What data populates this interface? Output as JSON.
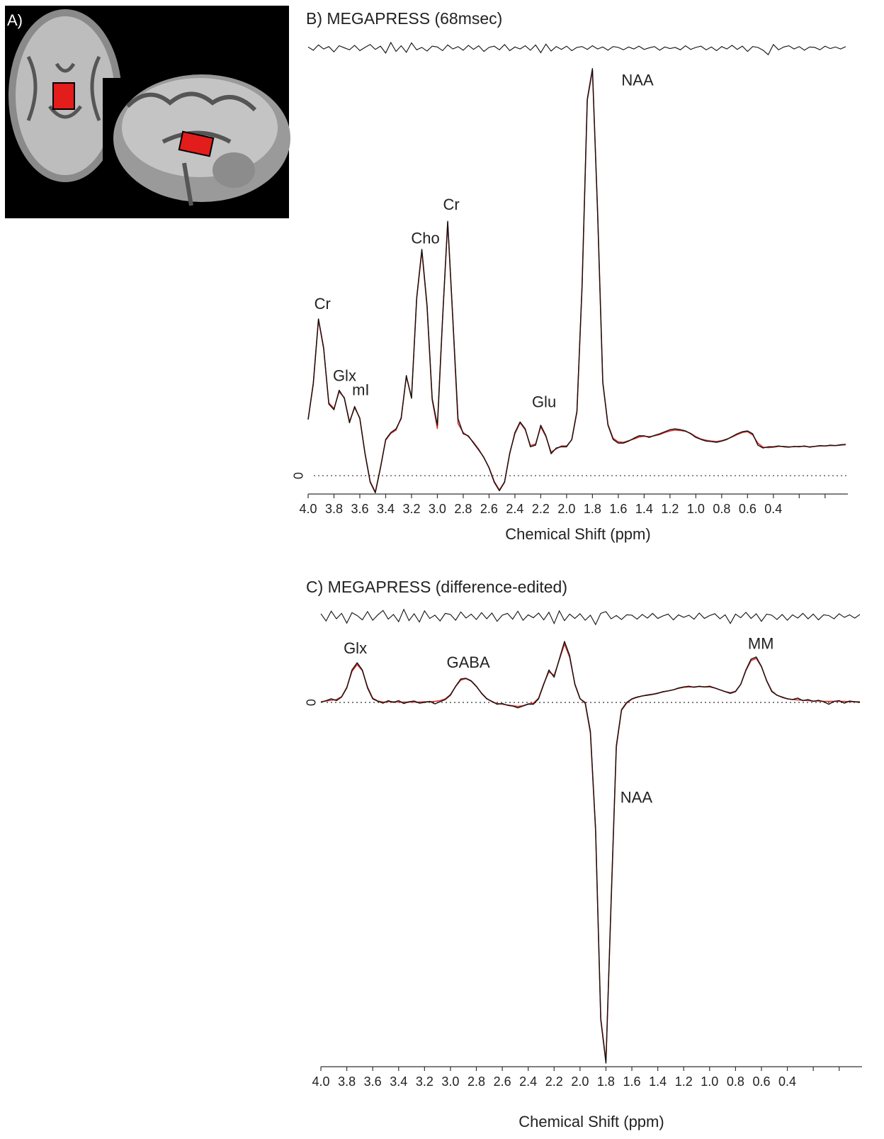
{
  "panel_a": {
    "label": "A)"
  },
  "chart_data": [
    {
      "type": "line",
      "title": "B) MEGAPRESS (68msec)",
      "xlabel": "Chemical Shift (ppm)",
      "x": [
        4.0,
        3.96,
        3.92,
        3.88,
        3.84,
        3.8,
        3.76,
        3.72,
        3.68,
        3.64,
        3.6,
        3.56,
        3.52,
        3.48,
        3.44,
        3.4,
        3.36,
        3.32,
        3.28,
        3.24,
        3.2,
        3.16,
        3.12,
        3.08,
        3.04,
        3.0,
        2.96,
        2.92,
        2.88,
        2.84,
        2.8,
        2.76,
        2.72,
        2.68,
        2.64,
        2.6,
        2.56,
        2.52,
        2.48,
        2.44,
        2.4,
        2.36,
        2.32,
        2.28,
        2.24,
        2.2,
        2.16,
        2.12,
        2.08,
        2.04,
        2.0,
        1.96,
        1.92,
        1.88,
        1.84,
        1.8,
        1.76,
        1.72,
        1.68,
        1.64,
        1.6,
        1.56,
        1.52,
        1.48,
        1.44,
        1.4,
        1.36,
        1.32,
        1.28,
        1.24,
        1.2,
        1.16,
        1.12,
        1.08,
        1.04,
        1.0,
        0.96,
        0.92,
        0.88,
        0.84,
        0.8,
        0.76,
        0.72,
        0.68,
        0.64,
        0.6,
        0.56,
        0.52,
        0.48,
        0.44,
        0.4,
        0.36,
        0.32,
        0.28,
        0.24,
        0.2,
        0.16,
        0.12,
        0.08,
        0.04,
        0,
        -0.04,
        -0.08,
        -0.12,
        -0.16
      ],
      "series": [
        {
          "color": "#e0302a",
          "values": [
            13.8,
            22.5,
            38.3,
            31.2,
            17.9,
            16.5,
            20.6,
            19.2,
            13.3,
            16.7,
            14.2,
            5.6,
            -1.4,
            -4.0,
            2.1,
            8.7,
            10.4,
            11.2,
            14.3,
            24.3,
            19.3,
            43.5,
            55.2,
            41.5,
            18.6,
            11.6,
            38.2,
            62.2,
            38.0,
            12.8,
            10.6,
            9.6,
            8.2,
            6.5,
            4.4,
            2.0,
            -1.4,
            -3.5,
            -1.5,
            5.6,
            10.3,
            13.0,
            11.3,
            7.4,
            7.8,
            12.0,
            9.6,
            5.8,
            6.6,
            7.3,
            7.3,
            8.8,
            15.6,
            46.6,
            92.2,
            99.5,
            64.8,
            23.1,
            12.6,
            9.2,
            8.3,
            8.2,
            8.6,
            9.0,
            9.5,
            9.7,
            9.6,
            9.8,
            10.1,
            10.6,
            11.0,
            11.2,
            11.1,
            10.9,
            10.4,
            9.6,
            9.0,
            8.7,
            8.5,
            8.4,
            8.6,
            9.0,
            9.5,
            10.1,
            10.6,
            10.8,
            10.0,
            8.0,
            7.0,
            6.9,
            7.0,
            7.2,
            7.2,
            7.1,
            7.1,
            7.2,
            7.2,
            7.1,
            7.2,
            7.3,
            7.3,
            7.4,
            7.4,
            7.5,
            7.6
          ]
        },
        {
          "color": "#111111",
          "values": [
            13.8,
            22.8,
            38.5,
            31.5,
            17.6,
            16.2,
            21,
            19,
            13,
            17,
            14,
            5.4,
            -1.6,
            -4.2,
            1.9,
            8.9,
            10.6,
            11.5,
            14,
            24.6,
            19,
            43.7,
            55.6,
            42,
            19,
            12.4,
            38.5,
            62.5,
            38.5,
            14,
            10.3,
            9.8,
            8,
            6.3,
            4.5,
            1.9,
            -1.6,
            -3.7,
            -1.6,
            5.4,
            10.6,
            13.2,
            11.5,
            7.1,
            7.5,
            12.4,
            9.8,
            5.4,
            6.8,
            7.1,
            7.1,
            8.9,
            15.9,
            47,
            92.5,
            100,
            64.6,
            22.8,
            12.4,
            8.9,
            8,
            8,
            8.5,
            9.2,
            9.8,
            9.8,
            9.4,
            9.9,
            10.3,
            10.8,
            11.3,
            11.5,
            11.3,
            11,
            10.3,
            9.4,
            8.9,
            8.5,
            8.4,
            8.2,
            8.5,
            8.9,
            9.6,
            10.3,
            10.8,
            11,
            10.3,
            7.5,
            6.8,
            7.1,
            7.1,
            7.3,
            7.1,
            7.0,
            7.2,
            7.1,
            7.3,
            7.0,
            7.2,
            7.4,
            7.3,
            7.5,
            7.4,
            7.6,
            7.7
          ]
        }
      ],
      "residual": {
        "color": "#111111",
        "values": [
          0.3,
          -0.5,
          0.8,
          -0.2,
          0.4,
          -0.9,
          0.6,
          0.1,
          -0.4,
          0.7,
          -0.6,
          0.2,
          0.9,
          -0.3,
          0.5,
          -1.2,
          1.4,
          -0.8,
          0.6,
          -1.0,
          1.3,
          -0.4,
          0.2,
          -0.7,
          0.5,
          0.3,
          -0.6,
          0.8,
          -0.2,
          0.4,
          -0.5,
          0.7,
          -0.3,
          0.6,
          -0.8,
          0.2,
          0.5,
          -0.4,
          0.9,
          -0.6,
          0.3,
          -0.2,
          0.6,
          -0.5,
          0.8,
          -1.1,
          1.0,
          -0.7,
          0.4,
          -0.3,
          0.5,
          -0.6,
          0.2,
          0.4,
          -0.3,
          0.6,
          -0.2,
          0.3,
          -0.5,
          0.4,
          0.2,
          -0.4,
          0.3,
          -0.2,
          0.5,
          -0.3,
          0.1,
          0.4,
          -0.5,
          0.3,
          -0.1,
          0.2,
          -0.4,
          0.6,
          -0.3,
          0.2,
          0.5,
          -0.4,
          0.3,
          -0.6,
          0.4,
          -0.2,
          0.7,
          -0.3,
          0.5,
          -0.8,
          0.4,
          0.2,
          -0.5,
          -1.6,
          0.9,
          -0.4,
          0.3,
          0.6,
          -0.2,
          0.4,
          -0.5,
          0.3,
          0.2,
          -0.4,
          0.5,
          -0.1,
          0.3,
          -0.2,
          0.4
        ]
      },
      "xlim": [
        4.0,
        -0.16
      ],
      "xticks": [
        {
          "value": 4.0,
          "label": "4.0"
        },
        3.8,
        3.6,
        3.4,
        3.2,
        {
          "value": 3.0,
          "label": "3.0"
        },
        2.8,
        2.6,
        2.4,
        2.2,
        {
          "value": 2.0,
          "label": "2.0"
        },
        1.8,
        1.6,
        1.4,
        1.2,
        {
          "value": 1.0,
          "label": "1.0"
        },
        0.8,
        0.6,
        0.4,
        {
          "value": 0.2
        },
        {
          "value": 0
        }
      ],
      "ylim": [
        -4.5,
        101
      ],
      "yticks": [
        0
      ],
      "grid": true,
      "annotations": [
        {
          "text": "Cr",
          "x": 3.9,
          "y": 38.5
        },
        {
          "text": "Glx",
          "x": 3.74,
          "y": 21
        },
        {
          "text": "mI",
          "x": 3.62,
          "y": 17
        },
        {
          "text": "Cho",
          "x": 3.12,
          "y": 55.6
        },
        {
          "text": "Cr",
          "x": 2.92,
          "y": 62.5
        },
        {
          "text": "Glu",
          "x": 2.18,
          "y": 12.4
        },
        {
          "text": "NAA",
          "x": 1.8,
          "y": 100
        }
      ]
    },
    {
      "type": "line",
      "title": "C) MEGAPRESS (difference-edited)",
      "xlabel": "Chemical Shift (ppm)",
      "x": [
        4.0,
        3.96,
        3.92,
        3.88,
        3.84,
        3.8,
        3.76,
        3.72,
        3.68,
        3.64,
        3.6,
        3.56,
        3.52,
        3.48,
        3.44,
        3.4,
        3.36,
        3.32,
        3.28,
        3.24,
        3.2,
        3.16,
        3.12,
        3.08,
        3.04,
        3.0,
        2.96,
        2.92,
        2.88,
        2.84,
        2.8,
        2.76,
        2.72,
        2.68,
        2.64,
        2.6,
        2.56,
        2.52,
        2.48,
        2.44,
        2.4,
        2.36,
        2.32,
        2.28,
        2.24,
        2.2,
        2.16,
        2.12,
        2.08,
        2.04,
        2.0,
        1.96,
        1.92,
        1.88,
        1.84,
        1.8,
        1.76,
        1.72,
        1.68,
        1.64,
        1.6,
        1.56,
        1.52,
        1.48,
        1.44,
        1.4,
        1.36,
        1.32,
        1.28,
        1.24,
        1.2,
        1.16,
        1.12,
        1.08,
        1.04,
        1.0,
        0.96,
        0.92,
        0.88,
        0.84,
        0.8,
        0.76,
        0.72,
        0.68,
        0.64,
        0.6,
        0.56,
        0.52,
        0.48,
        0.44,
        0.4,
        0.36,
        0.32,
        0.28,
        0.24,
        0.2,
        0.16,
        0.12,
        0.08,
        0.04,
        0,
        -0.04,
        -0.08,
        -0.12,
        -0.16
      ],
      "series": [
        {
          "color": "#e0302a",
          "values": [
            0.2,
            0.4,
            0.6,
            0.8,
            1.6,
            4.2,
            8.6,
            10.5,
            8.8,
            4.3,
            1.2,
            0.4,
            0.1,
            0.2,
            0.2,
            0.1,
            0.1,
            0.1,
            0.1,
            0.1,
            0.2,
            0.2,
            0.3,
            0.5,
            1.0,
            2.2,
            4.4,
            6.2,
            6.6,
            5.9,
            4.4,
            2.6,
            1.1,
            0.2,
            -0.3,
            -0.5,
            -0.7,
            -0.9,
            -1.1,
            -0.9,
            -0.4,
            -0.2,
            1.2,
            5.2,
            8.5,
            7.5,
            11.8,
            16.2,
            12.5,
            5.2,
            1.1,
            -0.3,
            -8.5,
            -35.5,
            -87.5,
            -99.5,
            -55.5,
            -12.5,
            -2.2,
            -0.2,
            0.9,
            1.4,
            1.8,
            2.1,
            2.3,
            2.6,
            2.9,
            3.2,
            3.5,
            3.9,
            4.2,
            4.3,
            4.3,
            4.4,
            4.3,
            4.3,
            4.0,
            3.5,
            3.0,
            2.7,
            3.1,
            5.0,
            8.8,
            11.6,
            12.2,
            9.9,
            6.1,
            3.2,
            2.0,
            1.4,
            1.0,
            0.8,
            0.7,
            0.6,
            0.5,
            0.4,
            0.4,
            0.3,
            0.3,
            0.3,
            0.3,
            0.3,
            0.2,
            0.2,
            0.2
          ]
        },
        {
          "color": "#111111",
          "values": [
            0,
            0.5,
            1,
            0.5,
            1.5,
            4,
            9,
            11,
            9,
            4,
            1,
            0.3,
            -0.2,
            0.5,
            0,
            0.5,
            -0.3,
            0.2,
            0.4,
            -0.2,
            0,
            0.3,
            -0.4,
            0.2,
            0.8,
            2,
            4.5,
            6.5,
            6.7,
            6,
            4.5,
            2.5,
            1,
            0.3,
            -0.5,
            -0.3,
            -0.8,
            -1,
            -1.5,
            -1,
            -0.5,
            -0.5,
            1,
            5,
            9,
            7,
            12,
            16.9,
            13,
            5,
            1,
            0,
            -8,
            -35,
            -88,
            -100,
            -55,
            -12,
            -2,
            0,
            1,
            1.5,
            1.8,
            2,
            2.2,
            2.5,
            3,
            3.2,
            3.5,
            4,
            4.3,
            4.5,
            4.2,
            4.5,
            4.3,
            4.5,
            4,
            3.5,
            3,
            2.5,
            3,
            5,
            9,
            12,
            12.6,
            10,
            6,
            3,
            2,
            1.5,
            1,
            0.8,
            1.2,
            0.5,
            0.8,
            0.3,
            0.6,
            0.2,
            -0.5,
            0.3,
            0.5,
            -0.2,
            0.4,
            0.2,
            0
          ]
        }
      ],
      "residual": {
        "color": "#111111",
        "values": [
          0.8,
          -1.2,
          1.5,
          -0.6,
          0.9,
          -1.8,
          1.1,
          0.3,
          -0.9,
          1.4,
          -1.0,
          0.5,
          1.7,
          -0.7,
          0.6,
          -1.4,
          2.0,
          -1.1,
          0.8,
          -1.5,
          1.6,
          -0.5,
          0.4,
          -1.2,
          0.9,
          0.6,
          -1.0,
          1.3,
          -0.4,
          0.7,
          -0.8,
          1.1,
          -0.6,
          1.0,
          -1.3,
          0.4,
          0.9,
          -0.7,
          1.5,
          -1.0,
          0.5,
          -0.3,
          1.0,
          -0.9,
          1.2,
          -1.9,
          1.6,
          -1.1,
          0.7,
          -0.5,
          0.8,
          -1.0,
          0.4,
          -2.2,
          0.9,
          1.4,
          -0.6,
          0.3,
          -0.8,
          0.5,
          0.4,
          -0.7,
          0.6,
          -0.4,
          0.9,
          -0.5,
          0.2,
          0.7,
          -0.9,
          0.5,
          -0.2,
          0.4,
          -0.7,
          1.0,
          -0.5,
          0.3,
          0.8,
          -0.6,
          0.5,
          -1.9,
          0.7,
          -0.3,
          1.2,
          -0.5,
          0.8,
          -1.3,
          0.7,
          0.4,
          -0.8,
          0.6,
          -1.0,
          0.5,
          -0.4,
          0.9,
          -0.6,
          0.7,
          -0.9,
          0.5,
          0.3,
          -0.6,
          0.8,
          -0.2,
          0.5,
          -0.4,
          0.6
        ]
      },
      "xlim": [
        4.0,
        -0.16
      ],
      "xticks": [
        {
          "value": 4.0,
          "label": "4.0"
        },
        3.8,
        3.6,
        3.4,
        3.2,
        {
          "value": 3.0,
          "label": "3.0"
        },
        2.8,
        2.6,
        2.4,
        2.2,
        {
          "value": 2.0,
          "label": "2.0"
        },
        1.8,
        1.6,
        1.4,
        1.2,
        {
          "value": 1.0,
          "label": "1.0"
        },
        0.8,
        0.6,
        0.4,
        {
          "value": 0.2
        },
        {
          "value": 0
        }
      ],
      "ylim": [
        -101,
        17.5
      ],
      "yticks": [
        0
      ],
      "grid": true,
      "annotations": [
        {
          "text": "Glx",
          "x": 3.74,
          "y": 11
        },
        {
          "text": "GABA",
          "x": 2.89,
          "y": 6.7
        },
        {
          "text": "NAA",
          "x": 1.82,
          "y": -100
        },
        {
          "text": "MM",
          "x": 0.61,
          "y": 12.6
        }
      ]
    }
  ]
}
